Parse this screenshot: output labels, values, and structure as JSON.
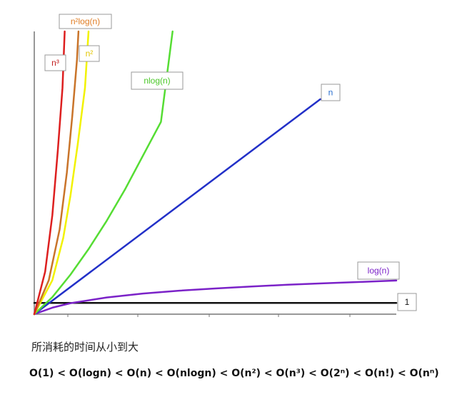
{
  "chart_data": {
    "type": "line",
    "title": "",
    "xlabel": "",
    "ylabel": "",
    "xlim": [
      0,
      10
    ],
    "ylim": [
      0,
      10
    ],
    "grid": false,
    "series": [
      {
        "name": "1",
        "color": "#111111",
        "points": [
          [
            0,
            0.4
          ],
          [
            10,
            0.4
          ]
        ]
      },
      {
        "name": "log(n)",
        "color": "#7b22c8",
        "points": [
          [
            0,
            0
          ],
          [
            0.5,
            0.23
          ],
          [
            1,
            0.39
          ],
          [
            2,
            0.59
          ],
          [
            3,
            0.73
          ],
          [
            4,
            0.83
          ],
          [
            5,
            0.91
          ],
          [
            6,
            0.98
          ],
          [
            7,
            1.04
          ],
          [
            8,
            1.09
          ],
          [
            9,
            1.14
          ],
          [
            10,
            1.19
          ]
        ]
      },
      {
        "name": "n",
        "color": "#2230c8",
        "points": [
          [
            0,
            0
          ],
          [
            7.9,
            7.6
          ]
        ]
      },
      {
        "name": "nlog(n)",
        "color": "#55dd33",
        "points": [
          [
            0,
            0
          ],
          [
            0.5,
            0.6
          ],
          [
            1,
            1.4
          ],
          [
            1.5,
            2.3
          ],
          [
            2,
            3.3
          ],
          [
            2.5,
            4.4
          ],
          [
            3,
            5.6
          ],
          [
            3.5,
            6.8
          ],
          [
            3.82,
            10
          ]
        ]
      },
      {
        "name": "n²",
        "color": "#f2f200",
        "points": [
          [
            0,
            0
          ],
          [
            0.5,
            1.2
          ],
          [
            0.8,
            2.7
          ],
          [
            1,
            4.2
          ],
          [
            1.2,
            6
          ],
          [
            1.4,
            8
          ],
          [
            1.5,
            10
          ]
        ]
      },
      {
        "name": "n²log(n)",
        "color": "#c9742a",
        "points": [
          [
            0,
            0
          ],
          [
            0.4,
            1.2
          ],
          [
            0.7,
            3
          ],
          [
            0.9,
            5
          ],
          [
            1.05,
            7
          ],
          [
            1.18,
            9
          ],
          [
            1.22,
            10
          ]
        ]
      },
      {
        "name": "n³",
        "color": "#dd1f1f",
        "points": [
          [
            0,
            0
          ],
          [
            0.3,
            1.5
          ],
          [
            0.5,
            3.5
          ],
          [
            0.65,
            5.8
          ],
          [
            0.78,
            8
          ],
          [
            0.84,
            10
          ]
        ]
      }
    ],
    "labels": [
      {
        "text": "n³",
        "color": "#c21f1f"
      },
      {
        "text": "n²log(n)",
        "color": "#e07d24"
      },
      {
        "text": "n²",
        "color": "#e2c600"
      },
      {
        "text": "nlog(n)",
        "color": "#4cc82a"
      },
      {
        "text": "n",
        "color": "#2a6fcf"
      },
      {
        "text": "log(n)",
        "color": "#7b22c8"
      },
      {
        "text": "1",
        "color": "#111111"
      }
    ]
  },
  "caption": "所消耗的时间从小到大",
  "order_text": "O(1) < O(logn) < O(n) < O(nlogn) < O(n²) < O(n³) < O(2ⁿ) < O(n!) < O(nⁿ)"
}
